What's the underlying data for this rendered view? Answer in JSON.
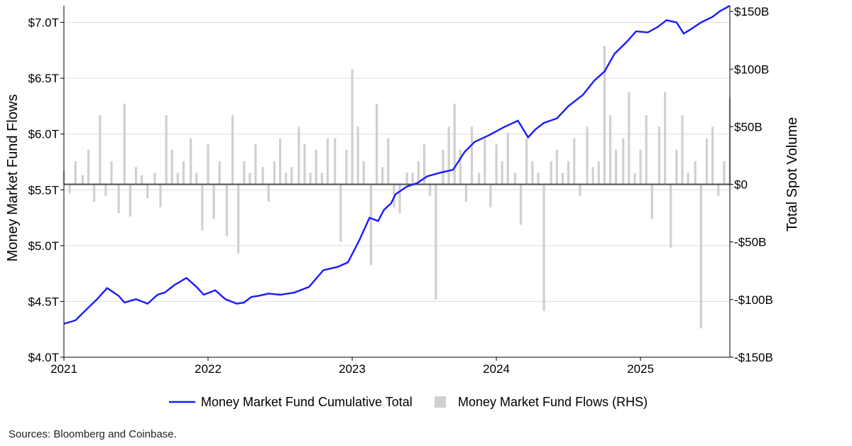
{
  "chart_data": {
    "type": "line+bar",
    "left_axis": {
      "label": "Money Market Fund Flows",
      "ticks": [
        "$4.0T",
        "$4.5T",
        "$5.0T",
        "$5.5T",
        "$6.0T",
        "$6.5T",
        "$7.0T"
      ],
      "tick_values": [
        4.0,
        4.5,
        5.0,
        5.5,
        6.0,
        6.5,
        7.0
      ],
      "range": [
        4.0,
        7.15
      ],
      "unit": "trillions USD"
    },
    "right_axis": {
      "label": "Total Spot Volume",
      "ticks": [
        "-$150B",
        "-$100B",
        "-$50B",
        "$0",
        "$50B",
        "$100B",
        "$150B"
      ],
      "tick_values": [
        -150,
        -100,
        -50,
        0,
        50,
        100,
        150
      ],
      "range": [
        -150,
        155
      ],
      "unit": "billions USD"
    },
    "x_axis": {
      "ticks": [
        "2021",
        "2022",
        "2023",
        "2024",
        "2025"
      ],
      "tick_values": [
        2021,
        2022,
        2023,
        2024,
        2025
      ],
      "range": [
        2021.0,
        2025.62
      ]
    },
    "grid": true,
    "legend": {
      "position": "bottom",
      "items": [
        {
          "label": "Money Market Fund Cumulative Total",
          "color": "#1a1aff",
          "kind": "line"
        },
        {
          "label": "Money Market Fund Flows (RHS)",
          "color": "#d0d0d0",
          "kind": "bar"
        }
      ]
    },
    "series": [
      {
        "name": "Money Market Fund Cumulative Total",
        "axis": "left",
        "color": "#1a1aff",
        "x": [
          2021.0,
          2021.08,
          2021.15,
          2021.23,
          2021.3,
          2021.38,
          2021.42,
          2021.5,
          2021.58,
          2021.65,
          2021.7,
          2021.77,
          2021.85,
          2021.92,
          2021.97,
          2022.05,
          2022.12,
          2022.2,
          2022.25,
          2022.3,
          2022.35,
          2022.42,
          2022.5,
          2022.6,
          2022.7,
          2022.8,
          2022.9,
          2022.97,
          2023.05,
          2023.12,
          2023.18,
          2023.22,
          2023.27,
          2023.3,
          2023.38,
          2023.45,
          2023.52,
          2023.6,
          2023.7,
          2023.78,
          2023.85,
          2023.95,
          2024.05,
          2024.15,
          2024.22,
          2024.27,
          2024.33,
          2024.42,
          2024.5,
          2024.6,
          2024.68,
          2024.75,
          2024.82,
          2024.9,
          2024.97,
          2025.05,
          2025.12,
          2025.18,
          2025.25,
          2025.3,
          2025.35,
          2025.42,
          2025.5,
          2025.55,
          2025.62
        ],
        "values": [
          4.3,
          4.33,
          4.42,
          4.52,
          4.62,
          4.55,
          4.49,
          4.52,
          4.48,
          4.56,
          4.58,
          4.65,
          4.71,
          4.63,
          4.56,
          4.6,
          4.52,
          4.48,
          4.49,
          4.54,
          4.55,
          4.57,
          4.56,
          4.58,
          4.63,
          4.78,
          4.81,
          4.85,
          5.05,
          5.25,
          5.22,
          5.32,
          5.38,
          5.46,
          5.53,
          5.56,
          5.62,
          5.65,
          5.68,
          5.84,
          5.93,
          5.99,
          6.06,
          6.12,
          5.97,
          6.04,
          6.1,
          6.14,
          6.25,
          6.35,
          6.48,
          6.56,
          6.72,
          6.82,
          6.92,
          6.91,
          6.96,
          7.02,
          7.0,
          6.9,
          6.94,
          7.0,
          7.05,
          7.1,
          7.15
        ]
      },
      {
        "name": "Money Market Fund Flows (RHS)",
        "axis": "right",
        "color": "#d0d0d0",
        "x": [
          2021.0,
          2021.04,
          2021.08,
          2021.13,
          2021.17,
          2021.21,
          2021.25,
          2021.29,
          2021.33,
          2021.38,
          2021.42,
          2021.46,
          2021.5,
          2021.54,
          2021.58,
          2021.63,
          2021.67,
          2021.71,
          2021.75,
          2021.79,
          2021.83,
          2021.88,
          2021.92,
          2021.96,
          2022.0,
          2022.04,
          2022.08,
          2022.13,
          2022.17,
          2022.21,
          2022.25,
          2022.29,
          2022.33,
          2022.38,
          2022.42,
          2022.46,
          2022.5,
          2022.54,
          2022.58,
          2022.63,
          2022.67,
          2022.71,
          2022.75,
          2022.79,
          2022.83,
          2022.88,
          2022.92,
          2022.96,
          2023.0,
          2023.04,
          2023.08,
          2023.13,
          2023.17,
          2023.21,
          2023.25,
          2023.29,
          2023.33,
          2023.38,
          2023.42,
          2023.46,
          2023.5,
          2023.54,
          2023.58,
          2023.63,
          2023.67,
          2023.71,
          2023.75,
          2023.79,
          2023.83,
          2023.88,
          2023.92,
          2023.96,
          2024.0,
          2024.04,
          2024.08,
          2024.13,
          2024.17,
          2024.21,
          2024.25,
          2024.29,
          2024.33,
          2024.38,
          2024.42,
          2024.46,
          2024.5,
          2024.54,
          2024.58,
          2024.63,
          2024.67,
          2024.71,
          2024.75,
          2024.79,
          2024.83,
          2024.88,
          2024.92,
          2024.96,
          2025.0,
          2025.04,
          2025.08,
          2025.13,
          2025.17,
          2025.21,
          2025.25,
          2025.29,
          2025.33,
          2025.38,
          2025.42,
          2025.46,
          2025.5,
          2025.54,
          2025.58,
          2025.62
        ],
        "values": [
          12,
          -8,
          20,
          8,
          30,
          -15,
          60,
          -10,
          20,
          -25,
          70,
          -28,
          15,
          8,
          -12,
          10,
          -20,
          60,
          30,
          10,
          20,
          40,
          10,
          -40,
          35,
          -30,
          20,
          -45,
          60,
          -60,
          20,
          10,
          35,
          15,
          -15,
          20,
          40,
          10,
          15,
          50,
          35,
          10,
          30,
          10,
          40,
          40,
          -50,
          30,
          100,
          50,
          20,
          -70,
          70,
          15,
          40,
          -20,
          -25,
          10,
          10,
          20,
          35,
          -10,
          -100,
          30,
          50,
          70,
          30,
          -15,
          50,
          10,
          40,
          -20,
          35,
          20,
          45,
          10,
          -35,
          40,
          20,
          10,
          -110,
          20,
          30,
          10,
          20,
          40,
          -10,
          50,
          15,
          20,
          120,
          60,
          30,
          40,
          80,
          10,
          30,
          60,
          -30,
          50,
          80,
          -55,
          30,
          60,
          10,
          20,
          -125,
          40,
          50,
          -10,
          20,
          75
        ]
      }
    ],
    "footnote": "Sources: Bloomberg and Coinbase."
  }
}
